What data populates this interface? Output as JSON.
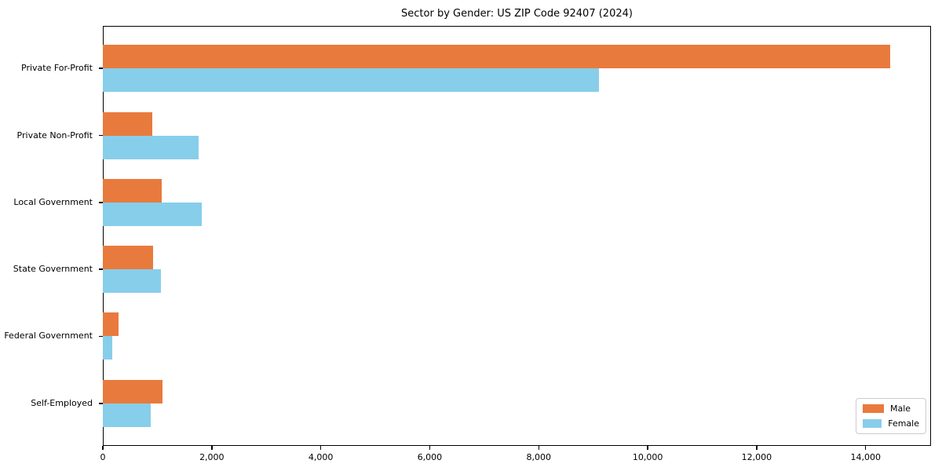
{
  "figure": {
    "title": "Sector by Gender: US ZIP Code 92407 (2024)"
  },
  "chart_data": {
    "type": "bar",
    "orientation": "horizontal",
    "title": "Sector by Gender: US ZIP Code 92407 (2024)",
    "categories": [
      "Private For-Profit",
      "Private Non-Profit",
      "Local Government",
      "State Government",
      "Federal Government",
      "Self-Employed"
    ],
    "series": [
      {
        "name": "Male",
        "color": "#e97a3d",
        "values": [
          14450,
          910,
          1080,
          920,
          290,
          1100
        ]
      },
      {
        "name": "Female",
        "color": "#87ceeb",
        "values": [
          9100,
          1760,
          1820,
          1070,
          175,
          880
        ]
      }
    ],
    "xlabel": "",
    "ylabel": "",
    "xlim": [
      0,
      15200
    ],
    "xticks": [
      0,
      2000,
      4000,
      6000,
      8000,
      10000,
      12000,
      14000
    ],
    "xtick_labels": [
      "0",
      "2,000",
      "4,000",
      "6,000",
      "8,000",
      "10,000",
      "12,000",
      "14,000"
    ],
    "grid": false,
    "legend": {
      "position": "lower right"
    }
  }
}
